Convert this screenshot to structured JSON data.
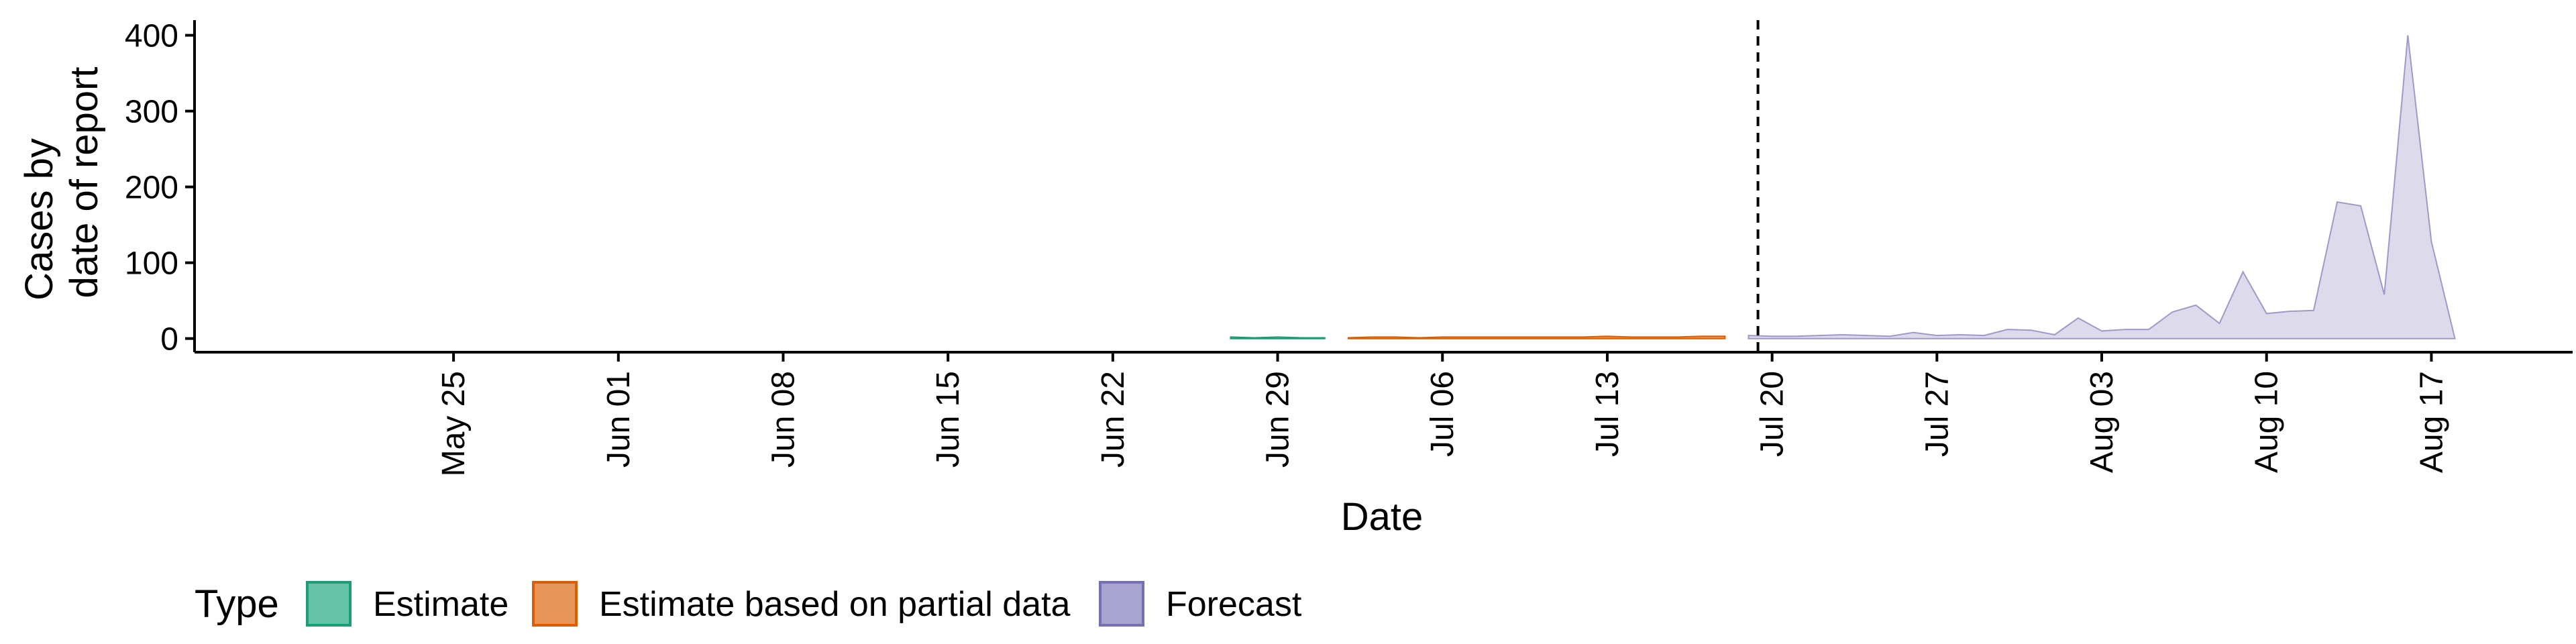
{
  "chart_data": {
    "type": "area",
    "xlabel": "Date",
    "ylabel_line1": "Cases by",
    "ylabel_line2": "date of report",
    "xlim": [
      "2020-05-14",
      "2020-08-23"
    ],
    "ylim": [
      -18,
      420
    ],
    "y_ticks": [
      0,
      100,
      200,
      300,
      400
    ],
    "x_ticks": [
      {
        "date": "2020-05-25",
        "label": "May 25"
      },
      {
        "date": "2020-06-01",
        "label": "Jun 01"
      },
      {
        "date": "2020-06-08",
        "label": "Jun 08"
      },
      {
        "date": "2020-06-15",
        "label": "Jun 15"
      },
      {
        "date": "2020-06-22",
        "label": "Jun 22"
      },
      {
        "date": "2020-06-29",
        "label": "Jun 29"
      },
      {
        "date": "2020-07-06",
        "label": "Jul 06"
      },
      {
        "date": "2020-07-13",
        "label": "Jul 13"
      },
      {
        "date": "2020-07-20",
        "label": "Jul 20"
      },
      {
        "date": "2020-07-27",
        "label": "Jul 27"
      },
      {
        "date": "2020-08-03",
        "label": "Aug 03"
      },
      {
        "date": "2020-08-10",
        "label": "Aug 10"
      },
      {
        "date": "2020-08-17",
        "label": "Aug 17"
      }
    ],
    "forecast_start": "2020-07-19",
    "grid": false,
    "legend_position": "bottom",
    "legend_title": "Type",
    "series": [
      {
        "name": "Estimate",
        "fill": "#66C2A5",
        "stroke": "#1B9E77",
        "x": [
          "2020-06-27",
          "2020-06-28",
          "2020-06-29",
          "2020-06-30",
          "2020-07-01"
        ],
        "lower": [
          0,
          0,
          0,
          0,
          0
        ],
        "upper": [
          2,
          1,
          2,
          1,
          1
        ]
      },
      {
        "name": "Estimate based on partial data",
        "fill": "#E8955A",
        "stroke": "#D95F02",
        "x": [
          "2020-07-02",
          "2020-07-03",
          "2020-07-04",
          "2020-07-05",
          "2020-07-06",
          "2020-07-07",
          "2020-07-08",
          "2020-07-09",
          "2020-07-10",
          "2020-07-11",
          "2020-07-12",
          "2020-07-13",
          "2020-07-14",
          "2020-07-15",
          "2020-07-16",
          "2020-07-17",
          "2020-07-18"
        ],
        "lower": [
          0,
          0,
          0,
          0,
          0,
          0,
          0,
          0,
          0,
          0,
          0,
          0,
          0,
          0,
          0,
          0,
          0
        ],
        "upper": [
          1,
          2,
          2,
          1,
          2,
          2,
          2,
          2,
          2,
          2,
          2,
          3,
          2,
          2,
          2,
          3,
          3
        ]
      },
      {
        "name": "Forecast",
        "fill": "#DCDAEB",
        "stroke": "#9E9AC8",
        "x": [
          "2020-07-19",
          "2020-07-20",
          "2020-07-21",
          "2020-07-22",
          "2020-07-23",
          "2020-07-24",
          "2020-07-25",
          "2020-07-26",
          "2020-07-27",
          "2020-07-28",
          "2020-07-29",
          "2020-07-30",
          "2020-07-31",
          "2020-08-01",
          "2020-08-02",
          "2020-08-03",
          "2020-08-04",
          "2020-08-05",
          "2020-08-06",
          "2020-08-07",
          "2020-08-08",
          "2020-08-09",
          "2020-08-10",
          "2020-08-11",
          "2020-08-12",
          "2020-08-13",
          "2020-08-14",
          "2020-08-15",
          "2020-08-16",
          "2020-08-17",
          "2020-08-18"
        ],
        "lower": [
          0,
          0,
          0,
          0,
          0,
          0,
          0,
          0,
          0,
          0,
          0,
          0,
          0,
          0,
          0,
          0,
          0,
          0,
          0,
          0,
          0,
          0,
          0,
          0,
          0,
          0,
          0,
          0,
          0,
          0,
          0
        ],
        "upper": [
          4,
          3,
          3,
          4,
          5,
          4,
          3,
          8,
          4,
          5,
          4,
          12,
          11,
          5,
          27,
          10,
          12,
          12,
          35,
          44,
          20,
          88,
          33,
          36,
          37,
          180,
          175,
          58,
          400,
          128,
          0
        ]
      }
    ]
  },
  "legend": {
    "title": "Type",
    "items": [
      {
        "label": "Estimate",
        "fill": "#66C2A5",
        "stroke": "#1B9E77"
      },
      {
        "label": "Estimate based on partial data",
        "fill": "#E8955A",
        "stroke": "#D95F02"
      },
      {
        "label": "Forecast",
        "fill": "#A8A5D1",
        "stroke": "#7570B3"
      }
    ]
  }
}
